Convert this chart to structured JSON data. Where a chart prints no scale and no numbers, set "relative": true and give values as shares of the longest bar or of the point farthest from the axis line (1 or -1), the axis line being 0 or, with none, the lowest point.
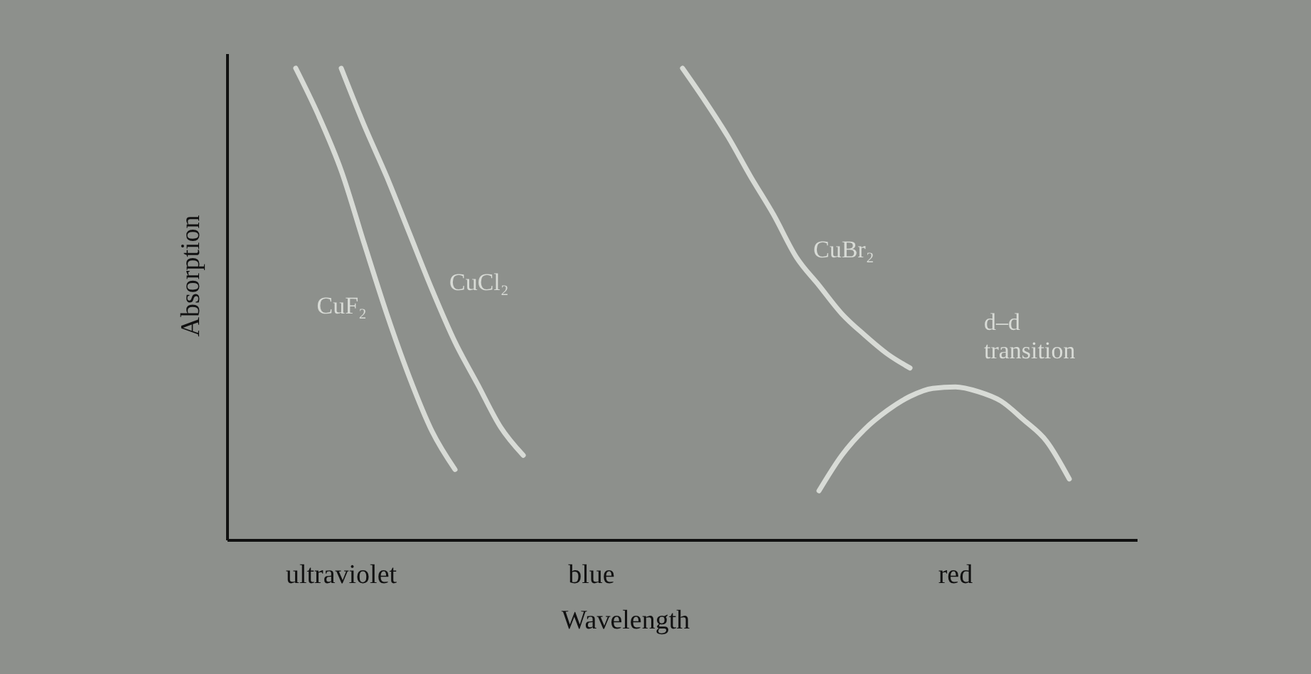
{
  "chart_data": {
    "type": "line",
    "relative": true,
    "xlabel": "Wavelength",
    "ylabel": "Absorption",
    "categories": [
      null,
      null,
      null,
      null,
      null,
      "ultraviolet",
      null,
      null,
      null,
      null,
      null,
      null,
      null,
      null,
      null,
      null,
      "blue",
      null,
      null,
      null,
      null,
      null,
      null,
      null,
      null,
      null,
      null,
      null,
      null,
      null,
      null,
      null,
      "red",
      null,
      null,
      null,
      null,
      null,
      null,
      null,
      null
    ],
    "line_style": "solid",
    "series": [
      {
        "name": "CuF₂",
        "color": "#d8dbd6",
        "values": [
          null,
          null,
          null,
          1,
          0.9,
          0.783,
          0.63,
          0.48,
          0.345,
          0.23,
          0.15,
          null,
          null,
          null,
          null,
          null,
          null,
          null,
          null,
          null,
          null,
          null,
          null,
          null,
          null,
          null,
          null,
          null,
          null,
          null,
          null,
          null,
          null,
          null,
          null,
          null,
          null,
          null,
          null,
          null,
          null
        ]
      },
      {
        "name": "CuCl₂",
        "color": "#d8dbd6",
        "values": [
          null,
          null,
          null,
          null,
          null,
          1,
          0.88,
          0.77,
          0.65,
          0.53,
          0.42,
          0.33,
          0.24,
          0.18,
          null,
          null,
          null,
          null,
          null,
          null,
          null,
          null,
          null,
          null,
          null,
          null,
          null,
          null,
          null,
          null,
          null,
          null,
          null,
          null,
          null,
          null,
          null,
          null,
          null,
          null,
          null
        ]
      },
      {
        "name": "CuBr₂",
        "color": "#d8dbd6",
        "values": [
          null,
          null,
          null,
          null,
          null,
          null,
          null,
          null,
          null,
          null,
          null,
          null,
          null,
          null,
          null,
          null,
          null,
          null,
          null,
          null,
          1,
          0.93,
          0.855,
          0.77,
          0.69,
          0.6,
          0.54,
          0.48,
          0.435,
          0.395,
          0.365,
          null,
          null,
          null,
          null,
          null,
          null,
          null,
          null,
          null,
          null
        ]
      },
      {
        "name": "d–d transition",
        "color": "#d8dbd6",
        "values": [
          null,
          null,
          null,
          null,
          null,
          null,
          null,
          null,
          null,
          null,
          null,
          null,
          null,
          null,
          null,
          null,
          null,
          null,
          null,
          null,
          null,
          null,
          null,
          null,
          null,
          null,
          0.105,
          0.18,
          0.235,
          0.275,
          0.305,
          0.322,
          0.325,
          0.315,
          0.295,
          0.255,
          0.21,
          0.13,
          null,
          null,
          null
        ]
      }
    ]
  }
}
